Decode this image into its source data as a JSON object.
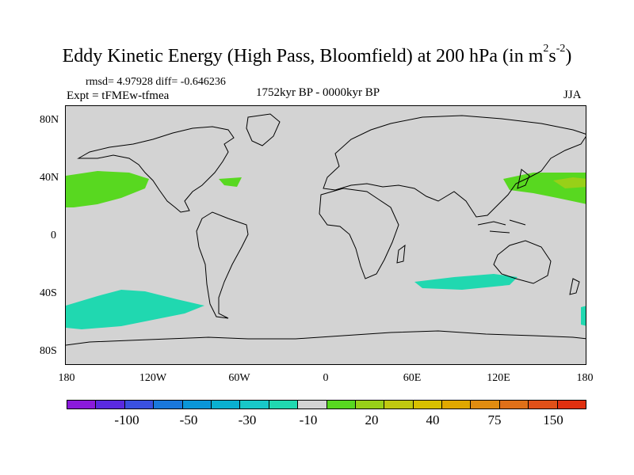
{
  "title": {
    "main": "Eddy Kinetic Energy (High Pass, Bloomfield) at 200 hPa (in m",
    "sup1": "2",
    "mid": "s",
    "sup2": "-2",
    "close": ")"
  },
  "stats": "rmsd= 4.97928 diff= -0.646236",
  "experiment": "Expt = tFMEw-tfmea",
  "period": "1752kyr BP - 0000kyr BP",
  "season": "JJA",
  "lat_labels": [
    "80N",
    "40N",
    "0",
    "40S",
    "80S"
  ],
  "lon_labels": [
    "180",
    "120W",
    "60W",
    "0",
    "60E",
    "120E",
    "180"
  ],
  "colorbar": {
    "colors": [
      "#8a1adc",
      "#5a2ae0",
      "#3a50e0",
      "#1a78dc",
      "#0a96d8",
      "#0ab0d0",
      "#18c8c8",
      "#20d8b0",
      "#d3d3d3",
      "#58d820",
      "#98d018",
      "#c0c810",
      "#d8c000",
      "#e0a800",
      "#e08c10",
      "#e07018",
      "#e05018",
      "#e03010"
    ],
    "labels": [
      "-100",
      "-50",
      "-30",
      "-10",
      "20",
      "40",
      "75",
      "150"
    ]
  },
  "anomaly_colors": {
    "green": "#58d820",
    "light_green": "#98d018",
    "cyan": "#20d8b0"
  }
}
